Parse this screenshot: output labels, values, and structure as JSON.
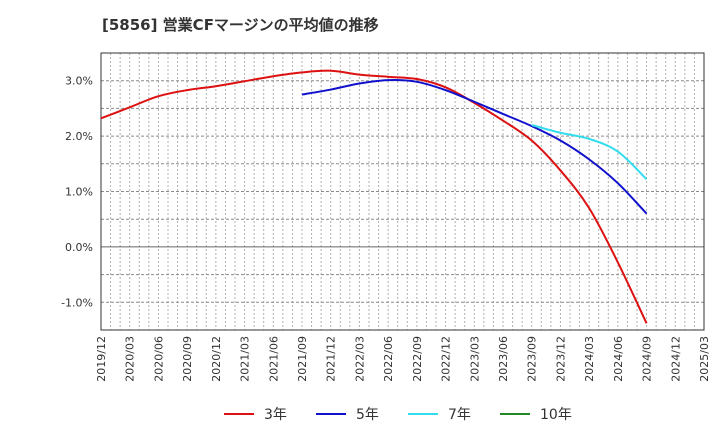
{
  "chart_data": {
    "type": "line",
    "title": "[5856]  営業CFマージンの平均値の推移",
    "xlabel": "",
    "ylabel": "",
    "x_ticks": [
      "2019/12",
      "2020/03",
      "2020/06",
      "2020/09",
      "2020/12",
      "2021/03",
      "2021/06",
      "2021/09",
      "2021/12",
      "2022/03",
      "2022/06",
      "2022/09",
      "2022/12",
      "2023/03",
      "2023/06",
      "2023/09",
      "2023/12",
      "2024/03",
      "2024/06",
      "2024/09",
      "2024/12",
      "2025/03"
    ],
    "y_ticks": [
      -1.0,
      0.0,
      1.0,
      2.0,
      3.0
    ],
    "y_tick_labels": [
      "-1.0%",
      "0.0%",
      "1.0%",
      "2.0%",
      "3.0%"
    ],
    "ylim": [
      -1.5,
      3.5
    ],
    "grid": true,
    "legend_position": "bottom",
    "series": [
      {
        "name": "3年",
        "color": "#dd1111",
        "points": [
          [
            "2019/12",
            2.32
          ],
          [
            "2020/03",
            2.52
          ],
          [
            "2020/06",
            2.72
          ],
          [
            "2020/09",
            2.83
          ],
          [
            "2020/12",
            2.9
          ],
          [
            "2021/03",
            2.99
          ],
          [
            "2021/06",
            3.08
          ],
          [
            "2021/09",
            3.15
          ],
          [
            "2021/12",
            3.18
          ],
          [
            "2022/03",
            3.11
          ],
          [
            "2022/06",
            3.07
          ],
          [
            "2022/09",
            3.03
          ],
          [
            "2022/12",
            2.88
          ],
          [
            "2023/03",
            2.6
          ],
          [
            "2023/06",
            2.28
          ],
          [
            "2023/09",
            1.92
          ],
          [
            "2023/12",
            1.38
          ],
          [
            "2024/03",
            0.7
          ],
          [
            "2024/06",
            -0.28
          ],
          [
            "2024/09",
            -1.38
          ]
        ]
      },
      {
        "name": "5年",
        "color": "#1111cc",
        "points": [
          [
            "2021/09",
            2.75
          ],
          [
            "2021/12",
            2.84
          ],
          [
            "2022/03",
            2.95
          ],
          [
            "2022/06",
            3.01
          ],
          [
            "2022/09",
            2.98
          ],
          [
            "2022/12",
            2.83
          ],
          [
            "2023/03",
            2.62
          ],
          [
            "2023/06",
            2.4
          ],
          [
            "2023/09",
            2.18
          ],
          [
            "2023/12",
            1.92
          ],
          [
            "2024/03",
            1.58
          ],
          [
            "2024/06",
            1.15
          ],
          [
            "2024/09",
            0.6
          ]
        ]
      },
      {
        "name": "7年",
        "color": "#33ddee",
        "points": [
          [
            "2023/09",
            2.2
          ],
          [
            "2023/12",
            2.06
          ],
          [
            "2024/03",
            1.95
          ],
          [
            "2024/06",
            1.72
          ],
          [
            "2024/09",
            1.22
          ]
        ]
      },
      {
        "name": "10年",
        "color": "#228822",
        "points": []
      }
    ]
  }
}
